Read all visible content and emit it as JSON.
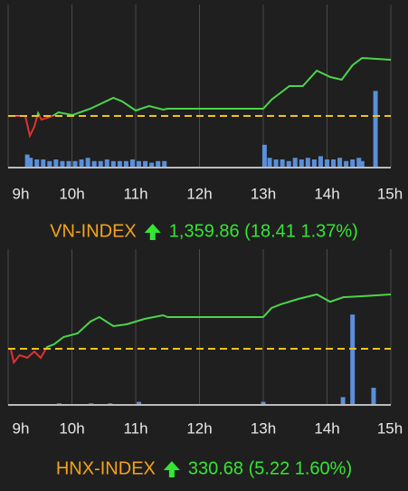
{
  "chart_data": [
    {
      "type": "line",
      "title": "VN-INDEX",
      "title_color": "#f5a31a",
      "quote": "1,359.86 (18.41 1.37%)",
      "quote_color": "#33e633",
      "color": "#4cd44c",
      "down_color": "#e03131",
      "reference": 1341.45,
      "reference_color": "#f0c419",
      "xlim": [
        9,
        15
      ],
      "ylim": [
        1324.5,
        1378
      ],
      "xticks": [
        {
          "value": 9,
          "label": "9h"
        },
        {
          "value": 10,
          "label": "10h"
        },
        {
          "value": 11,
          "label": "11h"
        },
        {
          "value": 12,
          "label": "12h"
        },
        {
          "value": 13,
          "label": "13h"
        },
        {
          "value": 14,
          "label": "14h"
        },
        {
          "value": 15,
          "label": "15h"
        }
      ],
      "x": [
        9.04,
        9.27,
        9.34,
        9.41,
        9.47,
        9.52,
        9.61,
        9.7,
        9.79,
        10.01,
        10.29,
        10.65,
        10.79,
        11.0,
        11.21,
        11.43,
        11.5,
        13.0,
        13.13,
        13.41,
        13.62,
        13.84,
        14.05,
        14.23,
        14.4,
        14.55,
        15.0
      ],
      "values": [
        1341.45,
        1341.45,
        1334.92,
        1337.89,
        1342.34,
        1340.26,
        1340.86,
        1341.45,
        1342.64,
        1341.75,
        1343.83,
        1347.39,
        1346.2,
        1343.23,
        1344.72,
        1343.53,
        1343.83,
        1343.83,
        1346.8,
        1351.25,
        1351.25,
        1356.3,
        1354.22,
        1353.33,
        1358.08,
        1360.46,
        1359.86
      ],
      "volume": {
        "axis": "y2",
        "color": "#5b8fd9",
        "x": [
          9.3,
          9.35,
          9.45,
          9.55,
          9.65,
          9.75,
          9.85,
          9.95,
          10.05,
          10.15,
          10.25,
          10.35,
          10.45,
          10.55,
          10.65,
          10.75,
          10.85,
          10.95,
          11.05,
          11.15,
          11.25,
          11.35,
          11.45,
          13.02,
          13.1,
          13.2,
          13.3,
          13.4,
          13.5,
          13.6,
          13.7,
          13.8,
          13.9,
          14.0,
          14.1,
          14.2,
          14.3,
          14.4,
          14.5,
          14.55,
          14.76
        ],
        "values": [
          8,
          6,
          5,
          5,
          4,
          5,
          4,
          4,
          4,
          5,
          6,
          4,
          4,
          5,
          4,
          4,
          4,
          5,
          4,
          4,
          3,
          4,
          4,
          14,
          6,
          5,
          5,
          4,
          6,
          5,
          6,
          5,
          7,
          5,
          5,
          6,
          4,
          5,
          6,
          4,
          47
        ]
      },
      "y2lim": [
        0,
        100
      ]
    },
    {
      "type": "line",
      "title": "HNX-INDEX",
      "title_color": "#f5a31a",
      "quote": "330.68 (5.22 1.60%)",
      "quote_color": "#33e633",
      "color": "#4cd44c",
      "down_color": "#e03131",
      "reference": 325.46,
      "reference_color": "#f0c419",
      "xlim": [
        9,
        15
      ],
      "ylim": [
        320.07,
        335.03
      ],
      "xticks": [
        {
          "value": 9,
          "label": "9h"
        },
        {
          "value": 10,
          "label": "10h"
        },
        {
          "value": 11,
          "label": "11h"
        },
        {
          "value": 12,
          "label": "12h"
        },
        {
          "value": 13,
          "label": "13h"
        },
        {
          "value": 14,
          "label": "14h"
        },
        {
          "value": 15,
          "label": "15h"
        }
      ],
      "x": [
        9.04,
        9.09,
        9.18,
        9.3,
        9.41,
        9.51,
        9.61,
        9.72,
        9.87,
        10.09,
        10.29,
        10.43,
        10.65,
        10.86,
        11.14,
        11.43,
        11.5,
        13.0,
        13.13,
        13.27,
        13.55,
        13.84,
        14.05,
        14.26,
        14.55,
        15.0
      ],
      "values": [
        325.46,
        324.15,
        324.85,
        324.59,
        325.2,
        324.59,
        325.63,
        325.9,
        326.59,
        326.94,
        328.07,
        328.51,
        327.64,
        327.81,
        328.33,
        328.68,
        328.51,
        328.51,
        329.38,
        329.72,
        330.25,
        330.68,
        329.98,
        330.42,
        330.51,
        330.68
      ],
      "volume": {
        "axis": "y2",
        "color": "#5b8fd9",
        "x": [
          9.8,
          10.3,
          10.6,
          11.05,
          13.0,
          14.25,
          14.4,
          14.73
        ],
        "values": [
          1,
          1,
          1,
          2,
          2,
          5,
          58,
          11
        ]
      },
      "y2lim": [
        0,
        100
      ]
    }
  ]
}
